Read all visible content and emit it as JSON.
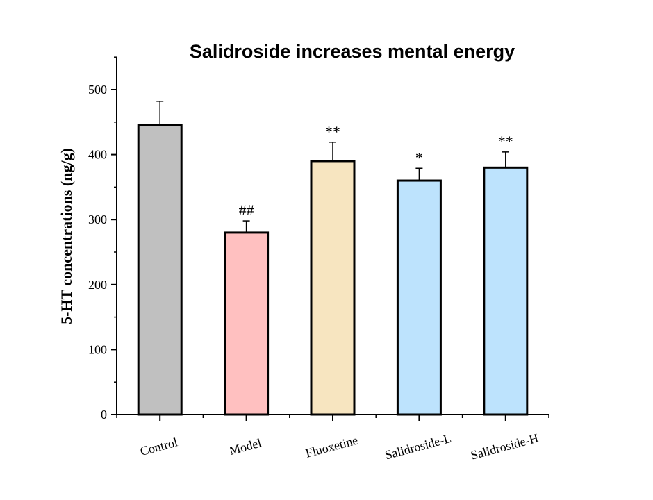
{
  "chart_data": {
    "type": "bar",
    "title": "Salidroside increases mental energy",
    "xlabel": "",
    "ylabel": "5-HT concentrations (ng/g)",
    "ylim": [
      0,
      550
    ],
    "yticks": [
      0,
      100,
      200,
      300,
      400,
      500
    ],
    "grid": false,
    "categories": [
      "Control",
      "Model",
      "Fluoxetine",
      "Salidroside-L",
      "Salidroside-H"
    ],
    "values": [
      445,
      280,
      390,
      360,
      380
    ],
    "errors": [
      37,
      18,
      29,
      19,
      24
    ],
    "annotations": [
      "",
      "##",
      "**",
      "*",
      "**"
    ],
    "colors": [
      "#c0c0c0",
      "#ffc0c0",
      "#f7e5c0",
      "#bde3fd",
      "#bde3fd"
    ]
  }
}
